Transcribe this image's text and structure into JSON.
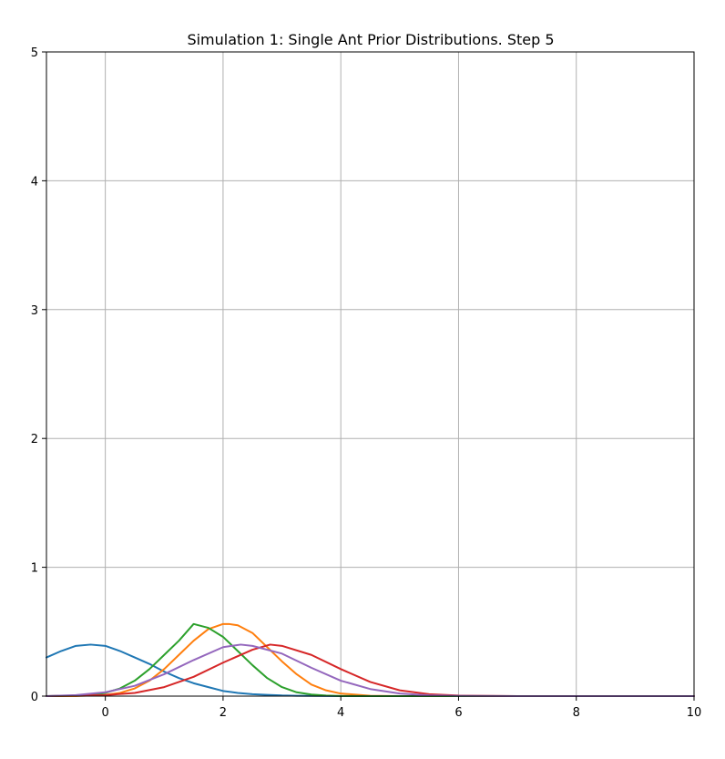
{
  "chart_data": {
    "type": "line",
    "title": "Simulation 1: Single Ant Prior Distributions. Step 5",
    "xlabel": "",
    "ylabel": "",
    "xlim": [
      -1,
      10
    ],
    "ylim": [
      0,
      5
    ],
    "x_ticks": [
      0,
      2,
      4,
      6,
      8,
      10
    ],
    "y_ticks": [
      0,
      1,
      2,
      3,
      4,
      5
    ],
    "grid": true,
    "legend": "none",
    "series": [
      {
        "color": "#1f77b4",
        "x": [
          -1.0,
          -0.75,
          -0.5,
          -0.25,
          0.0,
          0.25,
          0.5,
          0.75,
          1.0,
          1.25,
          1.5,
          1.75,
          2.0,
          2.25,
          2.5,
          2.75,
          3.0,
          3.25,
          3.5,
          3.75,
          4.0,
          4.5,
          5.0,
          6.0,
          7.0,
          8.0,
          9.0,
          10.0
        ],
        "y": [
          0.3,
          0.35,
          0.39,
          0.4,
          0.39,
          0.35,
          0.3,
          0.25,
          0.19,
          0.14,
          0.1,
          0.07,
          0.04,
          0.025,
          0.015,
          0.01,
          0.005,
          0.003,
          0.002,
          0.001,
          0.0,
          0.0,
          0.0,
          0.0,
          0.0,
          0.0,
          0.0,
          0.0
        ]
      },
      {
        "color": "#ff7f0e",
        "x": [
          -1.0,
          -0.5,
          0.0,
          0.25,
          0.5,
          0.75,
          1.0,
          1.25,
          1.5,
          1.75,
          2.0,
          2.1,
          2.25,
          2.5,
          2.75,
          3.0,
          3.25,
          3.5,
          3.75,
          4.0,
          4.5,
          5.0,
          6.0,
          7.0,
          8.0,
          9.0,
          10.0
        ],
        "y": [
          0.0,
          0.0,
          0.01,
          0.025,
          0.06,
          0.12,
          0.21,
          0.32,
          0.43,
          0.52,
          0.56,
          0.56,
          0.55,
          0.49,
          0.38,
          0.27,
          0.17,
          0.09,
          0.045,
          0.02,
          0.003,
          0.0,
          0.0,
          0.0,
          0.0,
          0.0,
          0.0
        ]
      },
      {
        "color": "#2ca02c",
        "x": [
          -1.0,
          -0.5,
          -0.25,
          0.0,
          0.25,
          0.5,
          0.75,
          1.0,
          1.25,
          1.5,
          1.75,
          2.0,
          2.25,
          2.5,
          2.75,
          3.0,
          3.25,
          3.5,
          3.75,
          4.0,
          4.5,
          5.0,
          6.0,
          7.0,
          8.0,
          9.0,
          10.0
        ],
        "y": [
          0.0,
          0.004,
          0.01,
          0.025,
          0.06,
          0.12,
          0.21,
          0.32,
          0.43,
          0.56,
          0.53,
          0.46,
          0.35,
          0.24,
          0.14,
          0.07,
          0.03,
          0.012,
          0.004,
          0.001,
          0.0,
          0.0,
          0.0,
          0.0,
          0.0,
          0.0,
          0.0
        ]
      },
      {
        "color": "#d62728",
        "x": [
          -1.0,
          0.0,
          0.5,
          1.0,
          1.5,
          2.0,
          2.5,
          2.8,
          3.0,
          3.5,
          4.0,
          4.5,
          5.0,
          5.5,
          6.0,
          7.0,
          8.0,
          9.0,
          10.0
        ],
        "y": [
          0.0,
          0.008,
          0.025,
          0.07,
          0.15,
          0.26,
          0.36,
          0.4,
          0.39,
          0.32,
          0.21,
          0.11,
          0.045,
          0.015,
          0.004,
          0.0,
          0.0,
          0.0,
          0.0
        ]
      },
      {
        "color": "#9467bd",
        "x": [
          -1.0,
          -0.5,
          0.0,
          0.5,
          1.0,
          1.5,
          2.0,
          2.3,
          2.5,
          3.0,
          3.5,
          4.0,
          4.5,
          5.0,
          5.5,
          6.0,
          7.0,
          8.0,
          9.0,
          10.0
        ],
        "y": [
          0.0,
          0.008,
          0.03,
          0.08,
          0.17,
          0.28,
          0.38,
          0.4,
          0.39,
          0.33,
          0.22,
          0.12,
          0.055,
          0.02,
          0.006,
          0.002,
          0.0,
          0.0,
          0.0,
          0.0
        ]
      }
    ]
  }
}
